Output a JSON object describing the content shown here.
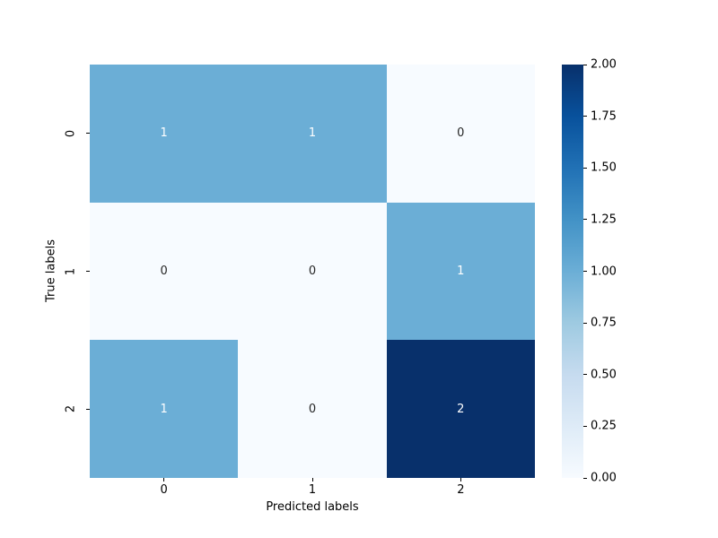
{
  "chart_data": {
    "type": "heatmap",
    "title": "",
    "xlabel": "Predicted labels",
    "ylabel": "True labels",
    "x_tick_labels": [
      "0",
      "1",
      "2"
    ],
    "y_tick_labels": [
      "0",
      "1",
      "2"
    ],
    "matrix": [
      [
        1,
        1,
        0
      ],
      [
        0,
        0,
        1
      ],
      [
        1,
        0,
        2
      ]
    ],
    "vmin": 0,
    "vmax": 2,
    "colormap": "Blues",
    "colorbar_tick_labels": [
      "2.00",
      "1.75",
      "1.50",
      "1.25",
      "1.00",
      "0.75",
      "0.50",
      "0.25",
      "0.00"
    ],
    "colormap_stops": [
      "#f7fbff",
      "#deebf7",
      "#c6dbef",
      "#9ecae1",
      "#6baed6",
      "#4292c6",
      "#2171b5",
      "#08519c",
      "#08306b"
    ],
    "value_cell_colors": {
      "0": "#f7fbff",
      "1": "#6baed6",
      "2": "#08306b"
    },
    "value_text_colors": {
      "0": "#262626",
      "1": "#ffffff",
      "2": "#ffffff"
    },
    "tick_color": "#000000",
    "background_color": "#ffffff",
    "legend_position": "right-colorbar",
    "grid": false
  }
}
